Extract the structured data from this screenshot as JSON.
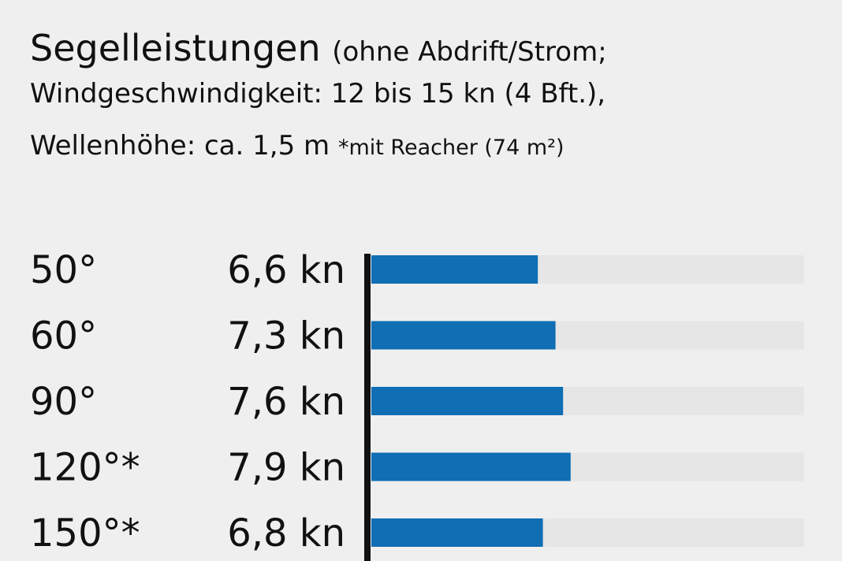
{
  "title": {
    "main": "Segelleistungen",
    "sub1": "(ohne Abdrift/Strom;",
    "line2": "Windgeschwindigkeit: 12 bis 15 kn (4 Bft.),",
    "line3": "Wellenhöhe: ca. 1,5 m",
    "note": "*mit Reacher (74 m²)"
  },
  "colors": {
    "bar": "#0f6eb4",
    "track": "#e6e6e6",
    "axis": "#111111",
    "background": "#efefef"
  },
  "chart_data": {
    "type": "bar",
    "orientation": "horizontal",
    "categories": [
      "50°",
      "60°",
      "90°",
      "120°*",
      "150°*"
    ],
    "value_labels": [
      "6,6 kn",
      "7,3 kn",
      "7,6 kn",
      "7,9 kn",
      "6,8 kn"
    ],
    "values": [
      6.6,
      7.3,
      7.6,
      7.9,
      6.8
    ],
    "unit": "kn",
    "xlim": [
      0,
      10.9
    ],
    "grid": false,
    "legend": "none"
  }
}
